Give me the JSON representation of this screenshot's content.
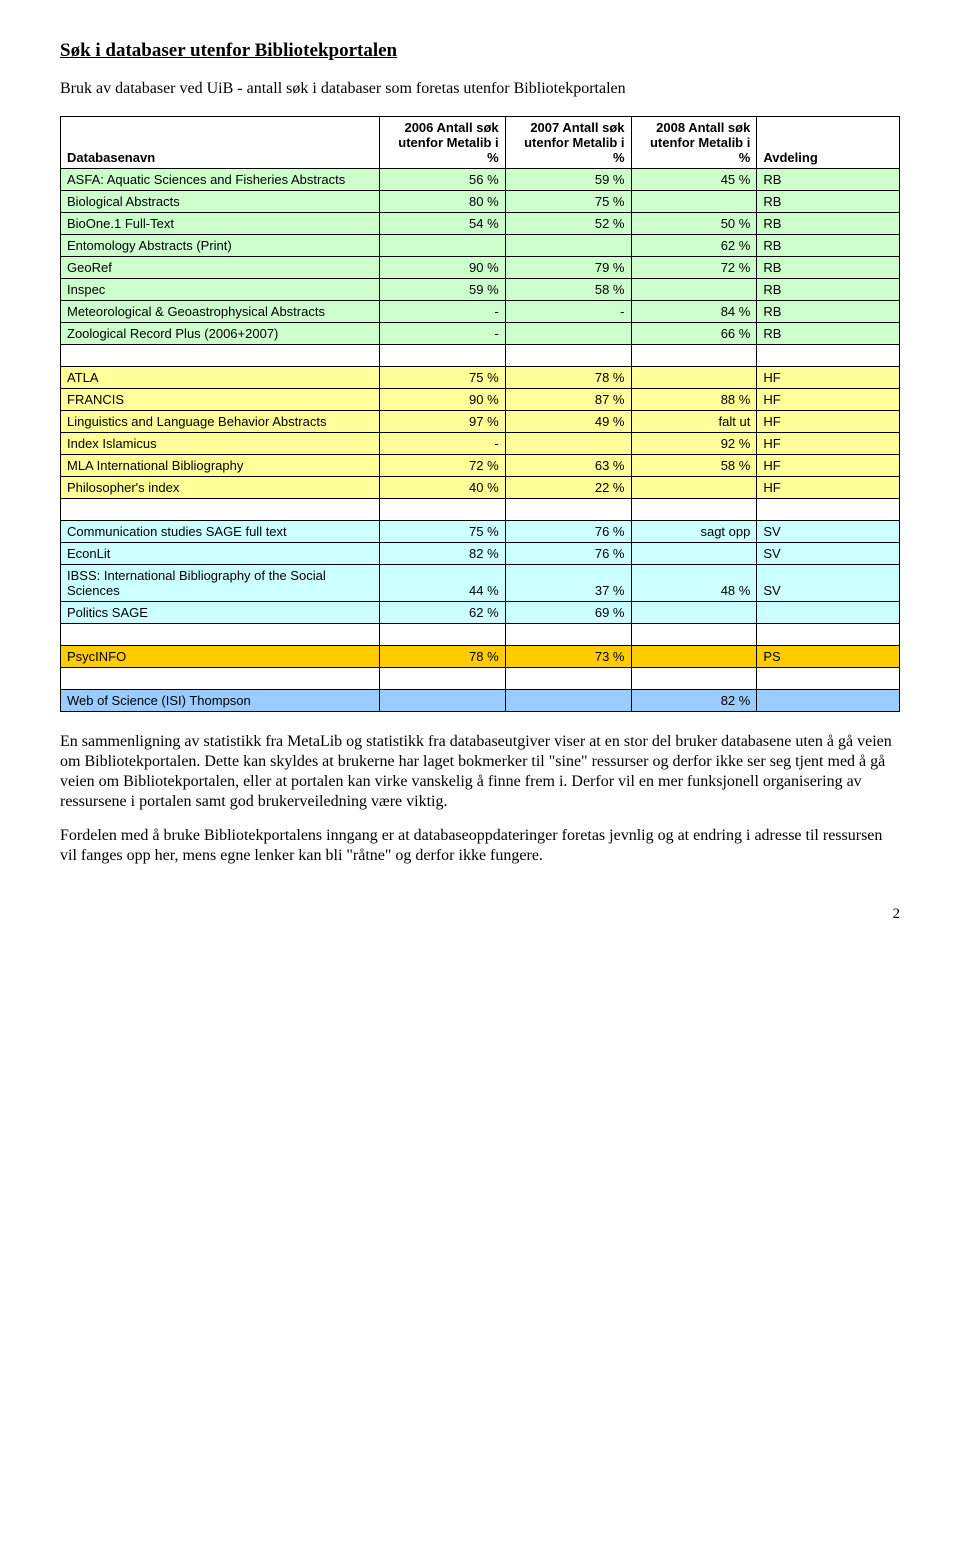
{
  "title": "Søk i databaser utenfor Bibliotekportalen",
  "intro": "Bruk av databaser ved UiB -  antall søk i databaser som foretas utenfor Bibliotekportalen",
  "table": {
    "headers": {
      "c0": "Databasenavn",
      "c1": "2006 Antall søk utenfor Metalib i %",
      "c2": "2007 Antall søk utenfor Metalib i %",
      "c3": "2008 Antall søk utenfor Metalib i %",
      "c4": "Avdeling"
    },
    "rows": [
      {
        "color": "green",
        "label": "ASFA: Aquatic Sciences and Fisheries Abstracts",
        "c1": "56 %",
        "c2": "59 %",
        "c3": "45 %",
        "c4": "RB"
      },
      {
        "color": "green",
        "label": "Biological Abstracts",
        "c1": "80 %",
        "c2": "75 %",
        "c3": "",
        "c4": "RB"
      },
      {
        "color": "green",
        "label": "BioOne.1 Full-Text",
        "c1": "54 %",
        "c2": "52 %",
        "c3": "50 %",
        "c4": "RB"
      },
      {
        "color": "green",
        "label": "Entomology Abstracts (Print)",
        "c1": "",
        "c2": "",
        "c3": "62 %",
        "c4": "RB"
      },
      {
        "color": "green",
        "label": "GeoRef",
        "c1": "90 %",
        "c2": "79 %",
        "c3": "72 %",
        "c4": "RB"
      },
      {
        "color": "green",
        "label": "Inspec",
        "c1": "59 %",
        "c2": "58 %",
        "c3": "",
        "c4": "RB"
      },
      {
        "color": "green",
        "label": "Meteorological & Geoastrophysical Abstracts",
        "c1": " -",
        "c2": " -",
        "c3": "84 %",
        "c4": "RB"
      },
      {
        "color": "green",
        "label": "Zoological Record Plus (2006+2007)",
        "c1": " -",
        "c2": "",
        "c3": "66 %",
        "c4": "RB"
      },
      {
        "blank": true
      },
      {
        "color": "yellow",
        "label": "ATLA",
        "c1": "75 %",
        "c2": "78 %",
        "c3": "",
        "c4": "HF"
      },
      {
        "color": "yellow",
        "label": "FRANCIS",
        "c1": "90 %",
        "c2": "87 %",
        "c3": "88 %",
        "c4": "HF"
      },
      {
        "color": "yellow",
        "label": "Linguistics and Language Behavior Abstracts",
        "c1": "97 %",
        "c2": "49 %",
        "c3": "falt ut",
        "c4": "HF"
      },
      {
        "color": "yellow",
        "label": "Index Islamicus",
        "c1": " -",
        "c2": "",
        "c3": "92 %",
        "c4": "HF"
      },
      {
        "color": "yellow",
        "label": "MLA International Bibliography",
        "c1": "72 %",
        "c2": "63 %",
        "c3": "58 %",
        "c4": "HF"
      },
      {
        "color": "yellow",
        "label": "Philosopher's index",
        "c1": "40 %",
        "c2": "22 %",
        "c3": "",
        "c4": "HF"
      },
      {
        "blank": true
      },
      {
        "color": "blue",
        "label": "Communication studies SAGE full text",
        "c1": "75 %",
        "c2": "76 %",
        "c3": "sagt opp",
        "c4": "SV"
      },
      {
        "color": "blue",
        "label": "EconLit",
        "c1": "82 %",
        "c2": "76 %",
        "c3": "",
        "c4": "SV"
      },
      {
        "color": "blue",
        "label": "IBSS: International Bibliography of the Social Sciences",
        "c1": "44 %",
        "c2": "37 %",
        "c3": "48 %",
        "c4": "SV"
      },
      {
        "color": "blue",
        "label": "Politics SAGE",
        "c1": "62 %",
        "c2": "69 %",
        "c3": "",
        "c4": ""
      },
      {
        "blank": true
      },
      {
        "color": "orange",
        "label": "PsycINFO",
        "c1": "78 %",
        "c2": "73 %",
        "c3": "",
        "c4": "PS"
      },
      {
        "blank": true
      },
      {
        "color": "lightblue",
        "label": "Web of Science (ISI) Thompson",
        "c1": "",
        "c2": "",
        "c3": "82 %",
        "c4": ""
      }
    ]
  },
  "para1": "En sammenligning av statistikk fra MetaLib og statistikk fra databaseutgiver viser at en stor del bruker databasene uten å gå veien om Bibliotekportalen. Dette kan skyldes at brukerne har laget bokmerker til \"sine\" ressurser og derfor ikke ser seg tjent med å gå veien om Bibliotekportalen, eller at portalen kan virke vanskelig å finne frem i. Derfor vil en mer funksjonell organisering av ressursene i portalen samt god brukerveiledning være viktig.",
  "para2": "Fordelen med å bruke Bibliotekportalens inngang er at databaseoppdateringer foretas jevnlig og at endring i adresse til ressursen vil fanges opp her, mens egne lenker kan bli \"råtne\" og derfor ikke fungere.",
  "pagenum": "2",
  "colwidths": {
    "c0": "38%",
    "c1": "15%",
    "c2": "15%",
    "c3": "15%",
    "c4": "17%"
  }
}
